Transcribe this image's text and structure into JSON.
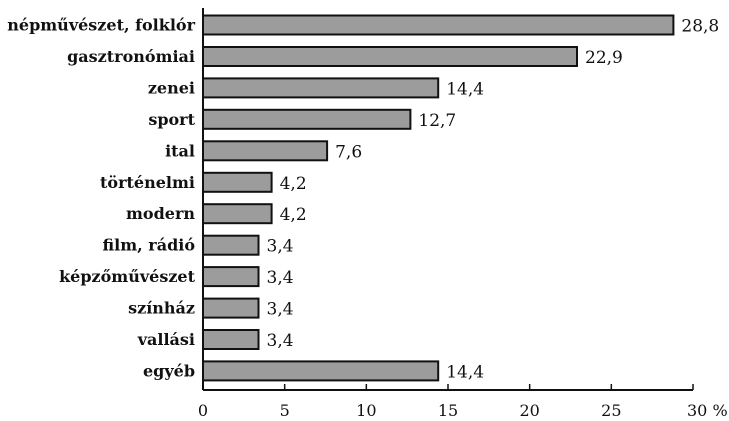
{
  "chart_data": {
    "type": "bar",
    "orientation": "horizontal",
    "categories": [
      "népművészet, folklór",
      "gasztronómiai",
      "zenei",
      "sport",
      "ital",
      "történelmi",
      "modern",
      "film, rádió",
      "képzőművészet",
      "színház",
      "vallási",
      "egyéb"
    ],
    "values": [
      28.8,
      22.9,
      14.4,
      12.7,
      7.6,
      4.2,
      4.2,
      3.4,
      3.4,
      3.4,
      3.4,
      14.4
    ],
    "value_labels": [
      "28,8",
      "22,9",
      "14,4",
      "12,7",
      "7,6",
      "4,2",
      "4,2",
      "3,4",
      "3,4",
      "3,4",
      "3,4",
      "14,4"
    ],
    "x_ticks": [
      0,
      5,
      10,
      15,
      20,
      25,
      30
    ],
    "x_tick_labels": [
      "0",
      "5",
      "10",
      "15",
      "20",
      "25",
      "30 %"
    ],
    "xlim": [
      0,
      30
    ],
    "title": "",
    "xlabel": "",
    "ylabel": "",
    "grid": false,
    "legend": "none",
    "bar_color": "#9c9c9c",
    "outline_color": "#111111"
  }
}
